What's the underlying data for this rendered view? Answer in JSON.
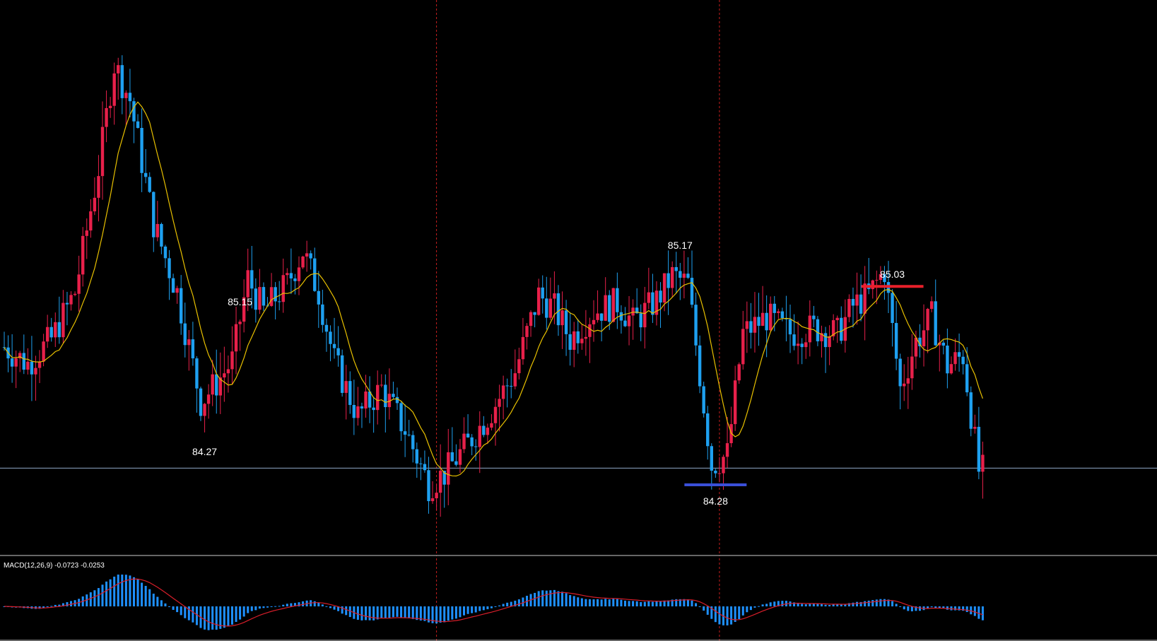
{
  "chart_data": [
    {
      "type": "candlestick",
      "colors": {
        "up": "#e8204a",
        "down": "#1ea0f0",
        "ma": "#e8c000",
        "current_price_line": "#8fa9c8",
        "separator": "#c81e1e",
        "support_marker": "#3a4fd8",
        "resistance_marker": "#e8202a",
        "background": "#000000",
        "label_text": "#ffffff"
      },
      "current_price": 84.31,
      "annotations": [
        {
          "label": "85.15",
          "candle_index": 60,
          "kind": "swing-high"
        },
        {
          "label": "84.27",
          "candle_index": 51,
          "kind": "swing-low"
        },
        {
          "label": "85.17",
          "candle_index": 172,
          "kind": "swing-high"
        },
        {
          "label": "84.28",
          "candle_index": 181,
          "kind": "support",
          "marker": true
        },
        {
          "label": "85.03",
          "candle_index": 226,
          "kind": "resistance",
          "marker": true
        }
      ],
      "separators_at_candle": [
        110,
        182
      ]
    },
    {
      "type": "histogram",
      "indicator": "MACD",
      "title": "MACD(12,26,9) -0.0723 -0.0253",
      "colors": {
        "histogram": "#1e90ff",
        "signal": "#d81e2a"
      }
    }
  ]
}
